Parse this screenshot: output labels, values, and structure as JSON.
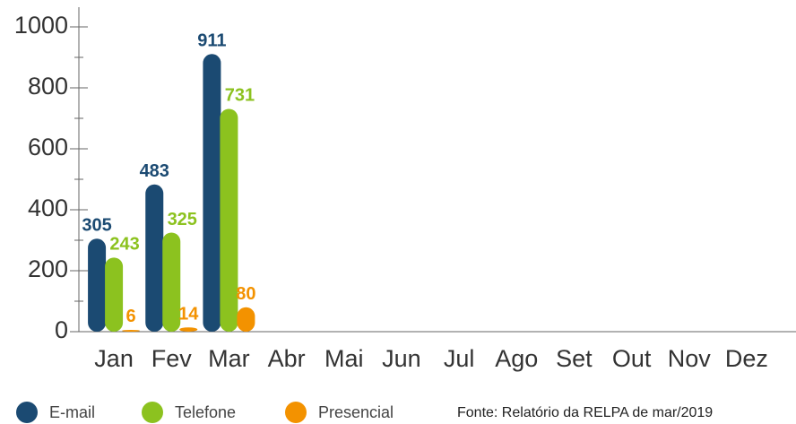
{
  "chart_data": {
    "type": "bar",
    "categories": [
      "Jan",
      "Fev",
      "Mar",
      "Abr",
      "Mai",
      "Jun",
      "Jul",
      "Ago",
      "Set",
      "Out",
      "Nov",
      "Dez"
    ],
    "series": [
      {
        "name": "E-mail",
        "color": "#1b4a72",
        "values": [
          305,
          483,
          911,
          null,
          null,
          null,
          null,
          null,
          null,
          null,
          null,
          null
        ]
      },
      {
        "name": "Telefone",
        "color": "#8cc21f",
        "values": [
          243,
          325,
          731,
          null,
          null,
          null,
          null,
          null,
          null,
          null,
          null,
          null
        ]
      },
      {
        "name": "Presencial",
        "color": "#f39200",
        "values": [
          6,
          14,
          80,
          null,
          null,
          null,
          null,
          null,
          null,
          null,
          null,
          null
        ]
      }
    ],
    "ylim": [
      0,
      1000
    ],
    "yticks": [
      0,
      200,
      400,
      600,
      800,
      1000
    ],
    "minor_yticks": [
      100,
      300,
      500,
      700,
      900
    ],
    "source": "Fonte: Relatório da RELPA de mar/2019"
  }
}
